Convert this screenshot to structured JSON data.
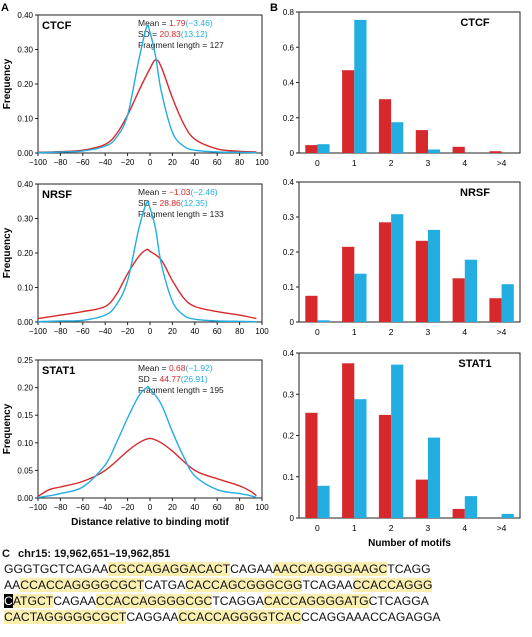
{
  "panels": {
    "A": "A",
    "B": "B",
    "C": "C"
  },
  "colors": {
    "red": "#d7282c",
    "blue": "#22aee0",
    "highlight": "#fbefb0"
  },
  "chart_data": [
    {
      "type": "line",
      "panel": "A",
      "title": "CTCF",
      "xlabel": "",
      "ylabel": "Frequency",
      "xlim": [
        -100,
        100
      ],
      "ylim": [
        0,
        0.4
      ],
      "xticks": [
        "−100",
        "−80",
        "−60",
        "−40",
        "−20",
        "0",
        "20",
        "40",
        "60",
        "80",
        "100"
      ],
      "yticks": [
        "0.00",
        "0.10",
        "0.20",
        "0.30",
        "0.40"
      ],
      "stats": {
        "mean_label": "Mean = ",
        "mean_red": "1.79",
        "mean_blue": "(−3.46)",
        "sd_label": "SD = ",
        "sd_red": "20.83",
        "sd_blue": "(13.12)",
        "frag_label": "Fragment length = ",
        "frag": "127"
      },
      "series": [
        {
          "color": "red",
          "x": [
            -100,
            -80,
            -60,
            -40,
            -30,
            -20,
            -10,
            0,
            5,
            10,
            20,
            30,
            40,
            60,
            80,
            95
          ],
          "y": [
            0.002,
            0.004,
            0.008,
            0.025,
            0.055,
            0.11,
            0.18,
            0.245,
            0.27,
            0.25,
            0.16,
            0.085,
            0.04,
            0.012,
            0.005,
            0.003
          ]
        },
        {
          "color": "blue",
          "x": [
            -100,
            -80,
            -60,
            -40,
            -30,
            -20,
            -10,
            -3,
            0,
            5,
            10,
            20,
            30,
            40,
            60,
            80,
            95
          ],
          "y": [
            0.001,
            0.003,
            0.006,
            0.02,
            0.045,
            0.11,
            0.27,
            0.365,
            0.35,
            0.28,
            0.18,
            0.06,
            0.02,
            0.008,
            0.003,
            0.002,
            0.001
          ]
        }
      ]
    },
    {
      "type": "line",
      "panel": "A",
      "title": "NRSF",
      "xlabel": "",
      "ylabel": "Frequency",
      "xlim": [
        -100,
        100
      ],
      "ylim": [
        0,
        0.4
      ],
      "xticks": [
        "−100",
        "−80",
        "−60",
        "−40",
        "−20",
        "0",
        "20",
        "40",
        "60",
        "80",
        "100"
      ],
      "yticks": [
        "0.00",
        "0.10",
        "0.20",
        "0.30",
        "0.40"
      ],
      "stats": {
        "mean_label": "Mean = ",
        "mean_red": "−1.03",
        "mean_blue": "(−2.46)",
        "sd_label": "SD = ",
        "sd_red": "28.86",
        "sd_blue": "(12.35)",
        "frag_label": "Fragment length = ",
        "frag": "133"
      },
      "series": [
        {
          "color": "red",
          "x": [
            -100,
            -80,
            -60,
            -40,
            -30,
            -20,
            -10,
            -3,
            0,
            10,
            20,
            30,
            40,
            60,
            80,
            95
          ],
          "y": [
            0.01,
            0.02,
            0.03,
            0.045,
            0.08,
            0.14,
            0.19,
            0.21,
            0.205,
            0.18,
            0.12,
            0.07,
            0.045,
            0.03,
            0.02,
            0.01
          ]
        },
        {
          "color": "blue",
          "x": [
            -100,
            -80,
            -60,
            -40,
            -30,
            -20,
            -10,
            -3,
            0,
            5,
            10,
            20,
            30,
            40,
            60,
            80,
            95
          ],
          "y": [
            0.001,
            0.003,
            0.005,
            0.02,
            0.05,
            0.12,
            0.27,
            0.345,
            0.33,
            0.27,
            0.17,
            0.06,
            0.02,
            0.008,
            0.003,
            0.002,
            0.001
          ]
        }
      ]
    },
    {
      "type": "line",
      "panel": "A",
      "title": "STAT1",
      "xlabel": "Distance relative to binding motif",
      "ylabel": "Frequency",
      "xlim": [
        -100,
        100
      ],
      "ylim": [
        0,
        0.25
      ],
      "xticks": [
        "−100",
        "−80",
        "−60",
        "−40",
        "−20",
        "0",
        "20",
        "40",
        "60",
        "80",
        "100"
      ],
      "yticks": [
        "0.00",
        "0.05",
        "0.10",
        "0.15",
        "0.20",
        "0.25"
      ],
      "stats": {
        "mean_label": "Mean = ",
        "mean_red": "0.68",
        "mean_blue": "(−1.92)",
        "sd_label": "SD = ",
        "sd_red": "44.77",
        "sd_blue": "(26.91)",
        "frag_label": "Fragment length = ",
        "frag": "195"
      },
      "series": [
        {
          "color": "red",
          "x": [
            -100,
            -90,
            -80,
            -60,
            -40,
            -20,
            -10,
            0,
            10,
            20,
            40,
            60,
            80,
            90,
            95
          ],
          "y": [
            0.003,
            0.015,
            0.02,
            0.03,
            0.05,
            0.085,
            0.1,
            0.108,
            0.1,
            0.085,
            0.05,
            0.035,
            0.022,
            0.012,
            0.004
          ]
        },
        {
          "color": "blue",
          "x": [
            -100,
            -90,
            -80,
            -60,
            -40,
            -30,
            -20,
            -10,
            -3,
            0,
            10,
            20,
            30,
            40,
            60,
            80,
            90,
            95
          ],
          "y": [
            0.001,
            0.004,
            0.008,
            0.02,
            0.06,
            0.1,
            0.145,
            0.185,
            0.2,
            0.198,
            0.17,
            0.12,
            0.075,
            0.04,
            0.015,
            0.008,
            0.004,
            0.001
          ]
        }
      ]
    },
    {
      "type": "bar",
      "panel": "B",
      "title": "CTCF",
      "xlabel": "",
      "ylabel": "",
      "categories": [
        "0",
        "1",
        "2",
        "3",
        "4",
        ">4"
      ],
      "ylim": [
        0,
        0.8
      ],
      "yticks": [
        "0",
        "0.2",
        "0.4",
        "0.6",
        "0.8"
      ],
      "series": [
        {
          "color": "red",
          "values": [
            0.045,
            0.47,
            0.305,
            0.13,
            0.035,
            0.01
          ]
        },
        {
          "color": "blue",
          "values": [
            0.05,
            0.755,
            0.175,
            0.02,
            0.0,
            0.0
          ]
        }
      ]
    },
    {
      "type": "bar",
      "panel": "B",
      "title": "NRSF",
      "xlabel": "",
      "ylabel": "",
      "categories": [
        "0",
        "1",
        "2",
        "3",
        "4",
        ">4"
      ],
      "ylim": [
        0,
        0.4
      ],
      "yticks": [
        "0",
        "0.1",
        "0.2",
        "0.3",
        "0.4"
      ],
      "series": [
        {
          "color": "red",
          "values": [
            0.075,
            0.215,
            0.285,
            0.232,
            0.125,
            0.068
          ]
        },
        {
          "color": "blue",
          "values": [
            0.005,
            0.138,
            0.308,
            0.263,
            0.178,
            0.108
          ]
        }
      ]
    },
    {
      "type": "bar",
      "panel": "B",
      "title": "STAT1",
      "xlabel": "Number of motifs",
      "ylabel": "",
      "categories": [
        "0",
        "1",
        "2",
        "3",
        "4",
        ">4"
      ],
      "ylim": [
        0,
        0.4
      ],
      "yticks": [
        "0",
        "0.1",
        "0.2",
        "0.3",
        "0.4"
      ],
      "series": [
        {
          "color": "red",
          "values": [
            0.255,
            0.375,
            0.25,
            0.093,
            0.022,
            0.0
          ]
        },
        {
          "color": "blue",
          "values": [
            0.078,
            0.288,
            0.372,
            0.195,
            0.053,
            0.01
          ]
        }
      ]
    }
  ],
  "sequence": {
    "title": "chr15: 19,962,651–19,962,851",
    "lines": [
      [
        {
          "t": "GGGTGCTCAGAA",
          "c": ""
        },
        {
          "t": "CGCCAGAGGACACT",
          "c": "hl"
        },
        {
          "t": "CAGAA",
          "c": ""
        },
        {
          "t": "AACCAGGGGAAGC",
          "c": "hl"
        },
        {
          "t": "TCAGG",
          "c": ""
        }
      ],
      [
        {
          "t": "AA",
          "c": ""
        },
        {
          "t": "CCACCAGGGGCGCT",
          "c": "hl"
        },
        {
          "t": "CATGA",
          "c": ""
        },
        {
          "t": "CACCAGCGGGCGG",
          "c": "hl"
        },
        {
          "t": "TCAGAA",
          "c": ""
        },
        {
          "t": "CCACCAGGG",
          "c": "hl"
        }
      ],
      [
        {
          "t": "C",
          "c": "bk"
        },
        {
          "t": "ATGCT",
          "c": "hl"
        },
        {
          "t": "CAGAA",
          "c": ""
        },
        {
          "t": "CCACCAGGGGCGC",
          "c": "hl"
        },
        {
          "t": "TCAGGA",
          "c": ""
        },
        {
          "t": "CACCAGGGGATG",
          "c": "hl"
        },
        {
          "t": "CTCAGGA",
          "c": ""
        }
      ],
      [
        {
          "t": "CACTAGGGGGCGCT",
          "c": "hl"
        },
        {
          "t": "CAGGAA",
          "c": ""
        },
        {
          "t": "CCACCAGGGGTCAC",
          "c": "hl"
        },
        {
          "t": "CCAGGAAACCAGAGGA",
          "c": ""
        }
      ]
    ]
  }
}
